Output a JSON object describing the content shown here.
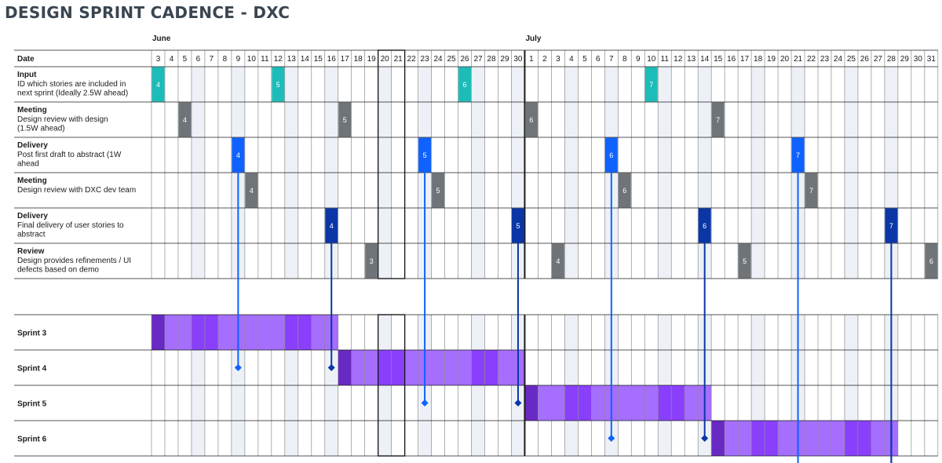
{
  "title": "DESIGN SPRINT CADENCE - DXC",
  "header_label": "Date",
  "months": [
    {
      "name": "June",
      "days": [
        3,
        4,
        5,
        6,
        7,
        8,
        9,
        10,
        11,
        12,
        13,
        14,
        15,
        16,
        17,
        18,
        19,
        20,
        21,
        22,
        23,
        24,
        25,
        26,
        27,
        28,
        29,
        30
      ]
    },
    {
      "name": "July",
      "days": [
        1,
        2,
        3,
        4,
        5,
        6,
        7,
        8,
        9,
        10,
        11,
        12,
        13,
        14,
        15,
        16,
        17,
        18,
        19,
        20,
        21,
        22,
        23,
        24,
        25,
        26,
        27,
        28,
        29,
        30,
        31
      ]
    }
  ],
  "shaded_columns": [
    3,
    6,
    10,
    13,
    17,
    20,
    24,
    27,
    31,
    34,
    38,
    41,
    45,
    48,
    52,
    55
  ],
  "weekend_box_columns": [
    17,
    18
  ],
  "month_divider_after_column": 27,
  "activity_rows": [
    {
      "title": "Input",
      "desc": [
        "ID which stories are included in",
        "next sprint (Ideally 2.5W ahead)"
      ],
      "color": "#1cbcb8",
      "markers": [
        {
          "col": 0,
          "label": "4"
        },
        {
          "col": 9,
          "label": "5"
        },
        {
          "col": 23,
          "label": "6"
        },
        {
          "col": 37,
          "label": "7"
        }
      ]
    },
    {
      "title": "Meeting",
      "desc": [
        "Design review with design",
        "(1.5W ahead)"
      ],
      "color": "#6f7478",
      "markers": [
        {
          "col": 2,
          "label": "4"
        },
        {
          "col": 14,
          "label": "5"
        },
        {
          "col": 28,
          "label": "6"
        },
        {
          "col": 42,
          "label": "7"
        }
      ]
    },
    {
      "title": "Delivery",
      "desc": [
        "Post first draft to abstract (1W",
        "ahead"
      ],
      "color": "#0f62fe",
      "markers": [
        {
          "col": 6,
          "label": "4"
        },
        {
          "col": 20,
          "label": "5"
        },
        {
          "col": 34,
          "label": "6"
        },
        {
          "col": 48,
          "label": "7"
        }
      ]
    },
    {
      "title": "Meeting",
      "desc": [
        "Design review with DXC dev team"
      ],
      "color": "#6f7478",
      "markers": [
        {
          "col": 7,
          "label": "4"
        },
        {
          "col": 21,
          "label": "5"
        },
        {
          "col": 35,
          "label": "6"
        },
        {
          "col": 49,
          "label": "7"
        }
      ]
    },
    {
      "title": "Delivery",
      "desc": [
        "Final delivery of user stories to",
        "abstract"
      ],
      "color": "#0a36a6",
      "markers": [
        {
          "col": 13,
          "label": "4"
        },
        {
          "col": 27,
          "label": "5"
        },
        {
          "col": 41,
          "label": "6"
        },
        {
          "col": 55,
          "label": "7"
        }
      ]
    },
    {
      "title": "Review",
      "desc": [
        "Design provides refinements / UI",
        "defects based on demo"
      ],
      "color": "#6f7478",
      "markers": [
        {
          "col": 16,
          "label": "3"
        },
        {
          "col": 30,
          "label": "4"
        },
        {
          "col": 44,
          "label": "5"
        },
        {
          "col": 58,
          "label": "6"
        }
      ]
    }
  ],
  "sprint_rows": [
    {
      "title": "Sprint 3",
      "start": 0,
      "end": 13
    },
    {
      "title": "Sprint 4",
      "start": 14,
      "end": 27
    },
    {
      "title": "Sprint 5",
      "start": 28,
      "end": 41
    },
    {
      "title": "Sprint 6",
      "start": 42,
      "end": 55
    }
  ],
  "connectors": [
    {
      "col": 6,
      "from_row": 2,
      "to_sprint": 1,
      "color": "#0f62fe"
    },
    {
      "col": 13,
      "from_row": 4,
      "to_sprint": 1,
      "color": "#0a36a6"
    },
    {
      "col": 20,
      "from_row": 2,
      "to_sprint": 2,
      "color": "#0f62fe"
    },
    {
      "col": 27,
      "from_row": 4,
      "to_sprint": 2,
      "color": "#0a36a6"
    },
    {
      "col": 34,
      "from_row": 2,
      "to_sprint": 3,
      "color": "#0f62fe"
    },
    {
      "col": 41,
      "from_row": 4,
      "to_sprint": 3,
      "color": "#0a36a6"
    },
    {
      "col": 48,
      "from_row": 2,
      "to_sprint": 4,
      "color": "#0f62fe"
    },
    {
      "col": 55,
      "from_row": 4,
      "to_sprint": 4,
      "color": "#0a36a6"
    }
  ],
  "colors": {
    "sprint_light": "#a56eff",
    "sprint_mid": "#8a3ffc",
    "sprint_dark": "#6929c4",
    "shade": "#edf1f7",
    "grid": "#8d8d8d"
  }
}
